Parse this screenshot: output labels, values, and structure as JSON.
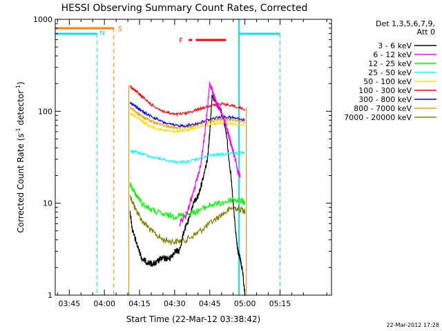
{
  "chart_data": {
    "type": "line",
    "title": "HESSI Observing Summary Count Rates, Corrected",
    "xlabel": "Start Time (22-Mar-12 03:38:42)",
    "ylabel_main": "Corrected Count Rate (s",
    "ylabel_sup1": "-1",
    "ylabel_mid": " detector",
    "ylabel_sup2": "-1",
    "ylabel_end": ")",
    "y_scale": "log",
    "ylim": [
      1,
      1000
    ],
    "xlim_minutes": [
      -6,
      112
    ],
    "x_ticks": [
      {
        "label": "03:45",
        "t": 0
      },
      {
        "label": "04:00",
        "t": 15
      },
      {
        "label": "04:15",
        "t": 30
      },
      {
        "label": "04:30",
        "t": 45
      },
      {
        "label": "04:45",
        "t": 60
      },
      {
        "label": "05:00",
        "t": 75
      },
      {
        "label": "05:15",
        "t": 90
      }
    ],
    "y_ticks": [
      {
        "label": "1",
        "v": 1
      },
      {
        "label": "10",
        "v": 10
      },
      {
        "label": "100",
        "v": 100
      },
      {
        "label": "1000",
        "v": 1000
      }
    ],
    "legend": {
      "header1": "Det 1,3,5,6,7,9,",
      "header2": "Att 0",
      "placement": "right"
    },
    "series": [
      {
        "name": "3 - 6 keV",
        "color": "#000000",
        "x": [
          26,
          27,
          29,
          31,
          33,
          35,
          37,
          39,
          41,
          43,
          45,
          47,
          49,
          51,
          53,
          55,
          57,
          59,
          60,
          61,
          63,
          65,
          67,
          69,
          71,
          72,
          73,
          74,
          75
        ],
        "y": [
          8,
          5,
          3.5,
          2.5,
          2.3,
          2.2,
          2.2,
          2.5,
          2.5,
          2.5,
          3,
          3,
          5,
          6.5,
          10,
          12,
          18,
          30,
          60,
          150,
          120,
          100,
          60,
          20,
          5,
          3,
          2.5,
          1.8,
          1
        ]
      },
      {
        "name": "6 - 12 keV",
        "color": "#ff00ff",
        "x": [
          47,
          50,
          53,
          56,
          58,
          60,
          61,
          62,
          63,
          65,
          67,
          69,
          71,
          72,
          73
        ],
        "y": [
          6,
          7.5,
          13,
          25,
          60,
          200,
          170,
          140,
          120,
          100,
          70,
          45,
          30,
          22,
          20
        ]
      },
      {
        "name": "12 - 25 keV",
        "color": "#00ff00",
        "x": [
          26,
          28,
          31,
          35,
          40,
          45,
          50,
          55,
          60,
          65,
          70,
          74,
          75
        ],
        "y": [
          16,
          13,
          10,
          8.5,
          7.5,
          7.2,
          7.5,
          8.2,
          9.5,
          10,
          11,
          10.5,
          10
        ]
      },
      {
        "name": "25 - 50 keV",
        "color": "#00ffff",
        "x": [
          26,
          30,
          35,
          40,
          45,
          50,
          55,
          60,
          65,
          70,
          75
        ],
        "y": [
          37,
          35,
          32,
          30,
          28,
          28,
          30,
          33,
          34,
          35,
          35
        ]
      },
      {
        "name": "50 - 100 keV",
        "color": "#ffe000",
        "x": [
          26,
          28,
          31,
          35,
          40,
          45,
          50,
          55,
          60,
          65,
          70,
          75
        ],
        "y": [
          95,
          88,
          78,
          68,
          62,
          60,
          62,
          67,
          72,
          75,
          73,
          70
        ]
      },
      {
        "name": "100 - 300 keV",
        "color": "#ff0000",
        "x": [
          26,
          28,
          31,
          35,
          40,
          45,
          50,
          55,
          60,
          65,
          70,
          75
        ],
        "y": [
          185,
          170,
          145,
          118,
          100,
          92,
          95,
          105,
          115,
          120,
          115,
          105
        ]
      },
      {
        "name": "300 - 800 keV",
        "color": "#0000ff",
        "x": [
          26,
          28,
          31,
          35,
          40,
          45,
          50,
          55,
          60,
          65,
          70,
          75
        ],
        "y": [
          125,
          115,
          100,
          88,
          76,
          70,
          70,
          74,
          82,
          88,
          85,
          80
        ]
      },
      {
        "name": "800 - 7000 keV",
        "color": "#ff9900",
        "x": [
          26,
          28,
          31,
          35,
          40,
          45,
          50,
          55,
          60,
          65,
          70,
          75
        ],
        "y": [
          110,
          100,
          88,
          78,
          70,
          66,
          67,
          72,
          78,
          82,
          80,
          76
        ]
      },
      {
        "name": "7000 - 20000 keV",
        "color": "#808000",
        "x": [
          26,
          28,
          31,
          35,
          40,
          45,
          50,
          55,
          60,
          65,
          70,
          74,
          75
        ],
        "y": [
          12,
          9,
          6.5,
          5,
          4,
          3.8,
          4,
          4.8,
          6,
          7.5,
          9,
          8.5,
          8
        ]
      }
    ],
    "annotations": {
      "flare_label": "F",
      "flare_segments": [
        [
          51,
          52.5
        ],
        [
          54,
          67
        ]
      ],
      "night_label": "N",
      "saa_label": "S",
      "night_intervals": [
        [
          -6,
          13
        ],
        [
          72.5,
          90
        ]
      ],
      "saa_interval": [
        -6,
        19
      ]
    }
  },
  "footer": {
    "timestamp": "22-Mar-2012 17:28"
  }
}
